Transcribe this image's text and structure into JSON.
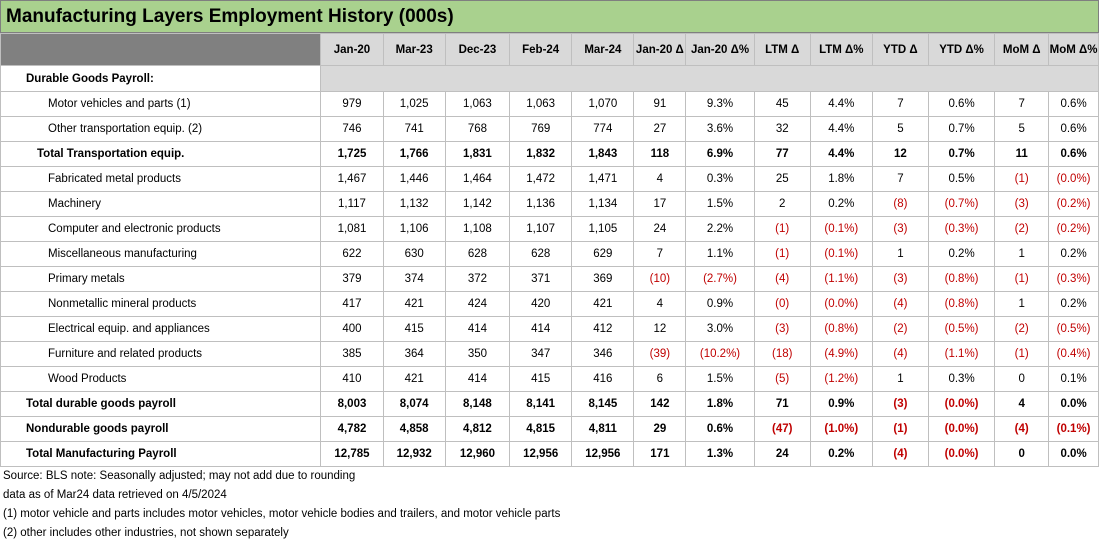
{
  "title": "Manufacturing Layers Employment History (000s)",
  "columns": [
    "Jan-20",
    "Mar-23",
    "Dec-23",
    "Feb-24",
    "Mar-24",
    "Jan-20 Δ",
    "Jan-20 Δ%",
    "LTM Δ",
    "LTM Δ%",
    "YTD Δ",
    "YTD Δ%",
    "MoM Δ",
    "MoM Δ%"
  ],
  "section_label": "Durable Goods Payroll:",
  "rows": [
    {
      "label": "Motor vehicles and parts (1)",
      "indent": 2,
      "bold": false,
      "cells": [
        "979",
        "1,025",
        "1,063",
        "1,063",
        "1,070",
        "91",
        "9.3%",
        "45",
        "4.4%",
        "7",
        "0.6%",
        "7",
        "0.6%"
      ]
    },
    {
      "label": "Other transportation equip. (2)",
      "indent": 2,
      "bold": false,
      "cells": [
        "746",
        "741",
        "768",
        "769",
        "774",
        "27",
        "3.6%",
        "32",
        "4.4%",
        "5",
        "0.7%",
        "5",
        "0.6%"
      ]
    },
    {
      "label": "Total Transportation equip.",
      "indent": 1,
      "bold": true,
      "cells": [
        "1,725",
        "1,766",
        "1,831",
        "1,832",
        "1,843",
        "118",
        "6.9%",
        "77",
        "4.4%",
        "12",
        "0.7%",
        "11",
        "0.6%"
      ]
    },
    {
      "label": "Fabricated metal products",
      "indent": 2,
      "bold": false,
      "cells": [
        "1,467",
        "1,446",
        "1,464",
        "1,472",
        "1,471",
        "4",
        "0.3%",
        "25",
        "1.8%",
        "7",
        "0.5%",
        "(1)",
        "(0.0%)"
      ]
    },
    {
      "label": "Machinery",
      "indent": 2,
      "bold": false,
      "cells": [
        "1,117",
        "1,132",
        "1,142",
        "1,136",
        "1,134",
        "17",
        "1.5%",
        "2",
        "0.2%",
        "(8)",
        "(0.7%)",
        "(3)",
        "(0.2%)"
      ]
    },
    {
      "label": "Computer and electronic products",
      "indent": 2,
      "bold": false,
      "cells": [
        "1,081",
        "1,106",
        "1,108",
        "1,107",
        "1,105",
        "24",
        "2.2%",
        "(1)",
        "(0.1%)",
        "(3)",
        "(0.3%)",
        "(2)",
        "(0.2%)"
      ]
    },
    {
      "label": "Miscellaneous manufacturing",
      "indent": 2,
      "bold": false,
      "cells": [
        "622",
        "630",
        "628",
        "628",
        "629",
        "7",
        "1.1%",
        "(1)",
        "(0.1%)",
        "1",
        "0.2%",
        "1",
        "0.2%"
      ]
    },
    {
      "label": "Primary metals",
      "indent": 2,
      "bold": false,
      "cells": [
        "379",
        "374",
        "372",
        "371",
        "369",
        "(10)",
        "(2.7%)",
        "(4)",
        "(1.1%)",
        "(3)",
        "(0.8%)",
        "(1)",
        "(0.3%)"
      ]
    },
    {
      "label": "Nonmetallic mineral products",
      "indent": 2,
      "bold": false,
      "cells": [
        "417",
        "421",
        "424",
        "420",
        "421",
        "4",
        "0.9%",
        "(0)",
        "(0.0%)",
        "(4)",
        "(0.8%)",
        "1",
        "0.2%"
      ]
    },
    {
      "label": "Electrical equip. and appliances",
      "indent": 2,
      "bold": false,
      "cells": [
        "400",
        "415",
        "414",
        "414",
        "412",
        "12",
        "3.0%",
        "(3)",
        "(0.8%)",
        "(2)",
        "(0.5%)",
        "(2)",
        "(0.5%)"
      ]
    },
    {
      "label": "Furniture and related products",
      "indent": 2,
      "bold": false,
      "cells": [
        "385",
        "364",
        "350",
        "347",
        "346",
        "(39)",
        "(10.2%)",
        "(18)",
        "(4.9%)",
        "(4)",
        "(1.1%)",
        "(1)",
        "(0.4%)"
      ]
    },
    {
      "label": "Wood Products",
      "indent": 2,
      "bold": false,
      "cells": [
        "410",
        "421",
        "414",
        "415",
        "416",
        "6",
        "1.5%",
        "(5)",
        "(1.2%)",
        "1",
        "0.3%",
        "0",
        "0.1%"
      ]
    },
    {
      "label": "Total durable goods payroll",
      "indent": 0,
      "bold": true,
      "cells": [
        "8,003",
        "8,074",
        "8,148",
        "8,141",
        "8,145",
        "142",
        "1.8%",
        "71",
        "0.9%",
        "(3)",
        "(0.0%)",
        "4",
        "0.0%"
      ]
    },
    {
      "label": "Nondurable goods payroll",
      "indent": 0,
      "bold": true,
      "cells": [
        "4,782",
        "4,858",
        "4,812",
        "4,815",
        "4,811",
        "29",
        "0.6%",
        "(47)",
        "(1.0%)",
        "(1)",
        "(0.0%)",
        "(4)",
        "(0.1%)"
      ]
    },
    {
      "label": "Total Manufacturing Payroll",
      "indent": 0,
      "bold": true,
      "cells": [
        "12,785",
        "12,932",
        "12,960",
        "12,956",
        "12,956",
        "171",
        "1.3%",
        "24",
        "0.2%",
        "(4)",
        "(0.0%)",
        "0",
        "0.0%"
      ]
    }
  ],
  "notes": [
    "Source: BLS     note: Seasonally adjusted; may not add due to rounding",
    "data as of Mar24     data retrieved on 4/5/2024",
    "(1) motor vehicle and parts includes motor vehicles, motor vehicle bodies and trailers, and motor vehicle parts",
    "(2) other includes other industries, not shown separately"
  ],
  "colors": {
    "title_bg": "#a9d18e",
    "header_bg": "#d9d9d9",
    "label_header_bg": "#808080",
    "negative": "#c00000"
  }
}
